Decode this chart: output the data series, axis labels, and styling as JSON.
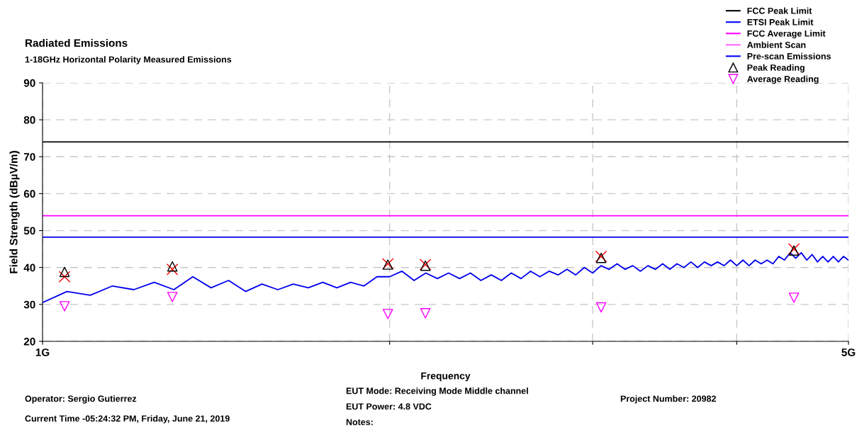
{
  "chart_data": {
    "type": "line",
    "title": "Radiated Emissions",
    "subtitle": "1-18GHz Horizontal Polarity Measured Emissions",
    "xlabel": "Frequency",
    "ylabel": "Field Strength (dBµV/m)",
    "log": "x",
    "xlim": [
      1,
      5
    ],
    "xticks": [
      {
        "value": 1,
        "label": "1G"
      },
      {
        "value": 2,
        "label": null
      },
      {
        "value": 3,
        "label": null
      },
      {
        "value": 4,
        "label": null
      },
      {
        "value": 5,
        "label": "5G"
      }
    ],
    "ylim": [
      20,
      90
    ],
    "yticks": [
      20,
      30,
      40,
      50,
      60,
      70,
      80,
      90
    ],
    "grid": true,
    "legend": "top right",
    "line_style": "solid",
    "series": [
      {
        "name": "FCC Peak Limit",
        "color": "#000000",
        "x": [
          1,
          5
        ],
        "values": [
          74,
          74
        ]
      },
      {
        "name": "ETSI Peak Limit",
        "color": "#0000ff",
        "x": [
          1,
          5
        ],
        "values": [
          48.2,
          48.2
        ]
      },
      {
        "name": "FCC Average Limit",
        "color": "#ff00ff",
        "x": [
          1,
          5
        ],
        "values": [
          54,
          54
        ]
      },
      {
        "name": "Ambient Scan",
        "color": "#ff66ff"
      },
      {
        "name": "Pre-scan Emissions",
        "color": "#0000ee",
        "x": [
          1.0,
          1.05,
          1.1,
          1.15,
          1.2,
          1.25,
          1.3,
          1.35,
          1.4,
          1.45,
          1.5,
          1.55,
          1.6,
          1.65,
          1.7,
          1.75,
          1.8,
          1.85,
          1.9,
          1.95,
          2.0,
          2.05,
          2.1,
          2.15,
          2.2,
          2.25,
          2.3,
          2.35,
          2.4,
          2.45,
          2.5,
          2.55,
          2.6,
          2.65,
          2.7,
          2.75,
          2.8,
          2.85,
          2.9,
          2.95,
          3.0,
          3.05,
          3.1,
          3.15,
          3.2,
          3.25,
          3.3,
          3.35,
          3.4,
          3.45,
          3.5,
          3.55,
          3.6,
          3.65,
          3.7,
          3.75,
          3.8,
          3.85,
          3.9,
          3.95,
          4.0,
          4.05,
          4.1,
          4.15,
          4.2,
          4.25,
          4.3,
          4.35,
          4.4,
          4.45,
          4.5,
          4.55,
          4.6,
          4.65,
          4.7,
          4.75,
          4.8,
          4.85,
          4.9,
          4.95,
          5.0
        ],
        "values": [
          30.5,
          33.5,
          32.5,
          35,
          34,
          36,
          34,
          37.5,
          34.5,
          36.5,
          33.5,
          35.5,
          34,
          35.5,
          34.5,
          36,
          34.5,
          36,
          35,
          37.5,
          37.5,
          39,
          36.5,
          38.5,
          37,
          38.5,
          37,
          38.5,
          36.5,
          38,
          36.5,
          38.5,
          37,
          39,
          37.5,
          39,
          38,
          39.5,
          38,
          40,
          38.5,
          40.5,
          39.5,
          41,
          39.5,
          40.5,
          39,
          40.5,
          39.5,
          41,
          39.5,
          41,
          40,
          41.5,
          40,
          41.5,
          40.5,
          41.5,
          40.5,
          42,
          40.5,
          42,
          40.5,
          42,
          41,
          42,
          41,
          43,
          42,
          44,
          42.5,
          44,
          42,
          43.5,
          41.5,
          43,
          41.5,
          43,
          41.5,
          43,
          42
        ]
      },
      {
        "type": "scatter",
        "color": "#ff0000",
        "marker": "cross",
        "x": [
          1.045,
          1.296,
          1.993,
          2.148,
          3.051,
          4.484
        ],
        "values": [
          37.5,
          39.5,
          41,
          40.8,
          43,
          45
        ]
      },
      {
        "name": "Peak Reading",
        "type": "scatter",
        "color": "#000000",
        "marker": "triangle",
        "x": [
          1.045,
          1.296,
          1.993,
          2.148,
          3.051,
          4.484
        ],
        "values": [
          38.8,
          40.3,
          40.8,
          40.5,
          42.6,
          44.6
        ]
      },
      {
        "name": "Average Reading",
        "type": "scatter",
        "color": "#ff00ff",
        "marker": "triangle_down",
        "x": [
          1.045,
          1.296,
          1.993,
          2.148,
          3.051,
          4.484
        ],
        "values": [
          29.5,
          32,
          27.4,
          27.6,
          29.2,
          31.8
        ]
      }
    ],
    "annotations": [
      "Operator: Sergio Gutierrez",
      "Current Time -05:24:32 PM, Friday, June 21, 2019",
      "EUT Mode: Receiving Mode Middle channel",
      "EUT Power: 4.8 VDC",
      "Notes:",
      "Project Number: 20982"
    ]
  }
}
